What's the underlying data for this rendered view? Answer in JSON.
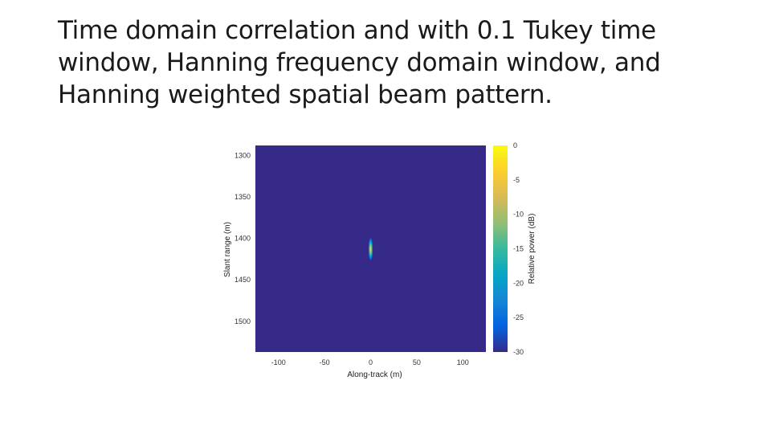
{
  "slide": {
    "title_lines": [
      "Time domain correlation and with 0.1 Tukey time",
      "window, Hanning frequency domain window, and",
      "Hanning weighted spatial beam pattern."
    ]
  },
  "chart_data": {
    "type": "heatmap",
    "title": "",
    "xlabel": "Along-track (m)",
    "ylabel": "Slant range (m)",
    "xlim": [
      -125,
      125
    ],
    "ylim": [
      1288,
      1537
    ],
    "y_reversed": true,
    "x_ticks": [
      -100,
      -50,
      0,
      50,
      100
    ],
    "y_ticks": [
      1300,
      1350,
      1400,
      1450,
      1500
    ],
    "x_tick_labels": [
      "-100",
      "-50",
      "0",
      "50",
      "100"
    ],
    "y_tick_labels": [
      "1300",
      "1350",
      "1400",
      "1450",
      "1500"
    ],
    "colorbar": {
      "label": "Relative power (dB)",
      "min": -30,
      "max": 0,
      "ticks": [
        0,
        -5,
        -10,
        -15,
        -20,
        -25,
        -30
      ],
      "tick_labels": [
        "0",
        "-5",
        "-10",
        "-15",
        "-20",
        "-25",
        "-30"
      ],
      "colormap": "parula"
    },
    "background_value_db": -30,
    "peak": {
      "x": 0,
      "y": 1413,
      "value_db": 0,
      "x_extent_m": 5,
      "y_extent_m": 28
    },
    "colors": {
      "background": "#352a87",
      "parula_stops": [
        "#352a87",
        "#0363e1",
        "#1485d4",
        "#06a7c6",
        "#38b99e",
        "#92bf73",
        "#d9ba56",
        "#fcce2e",
        "#f9fb0e"
      ]
    }
  }
}
